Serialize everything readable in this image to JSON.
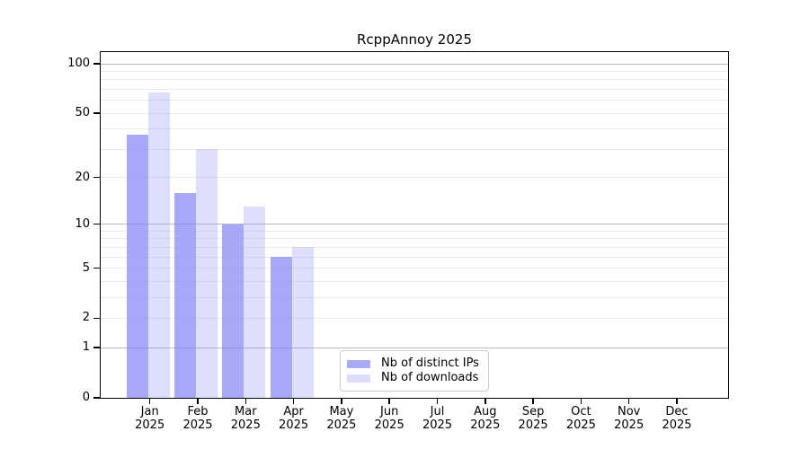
{
  "chart_data": {
    "type": "bar",
    "title": "RcppAnnoy 2025",
    "xlabel": "",
    "ylabel": "",
    "x_year": "2025",
    "categories": [
      "Jan",
      "Feb",
      "Mar",
      "Apr",
      "May",
      "Jun",
      "Jul",
      "Aug",
      "Sep",
      "Oct",
      "Nov",
      "Dec"
    ],
    "series": [
      {
        "name": "Nb of distinct IPs",
        "color": "#a9a9f9",
        "fill": "rgba(134,134,246,0.72)",
        "values": [
          37,
          16,
          10,
          6,
          0,
          0,
          0,
          0,
          0,
          0,
          0,
          0
        ]
      },
      {
        "name": "Nb of downloads",
        "color": "#dcdcfc",
        "fill": "rgba(134,134,246,0.27)",
        "values": [
          67,
          30,
          13,
          7,
          0,
          0,
          0,
          0,
          0,
          0,
          0,
          0
        ]
      }
    ],
    "y_scale": "log1p",
    "ylim": [
      0,
      100
    ],
    "y_ticks": [
      0,
      1,
      2,
      5,
      10,
      20,
      50,
      100
    ],
    "y_grid_major": [
      1,
      10,
      100
    ],
    "y_grid_minor": [
      2,
      3,
      4,
      5,
      6,
      7,
      8,
      9,
      20,
      30,
      40,
      50,
      60,
      70,
      80,
      90
    ],
    "grid": "on",
    "legend_position": "bottom-center",
    "colors": {
      "major_grid": "#b9b9b9",
      "minor_grid": "#ebebeb",
      "spine": "#000000",
      "legend_border": "#cccccc",
      "text": "#000000"
    }
  }
}
